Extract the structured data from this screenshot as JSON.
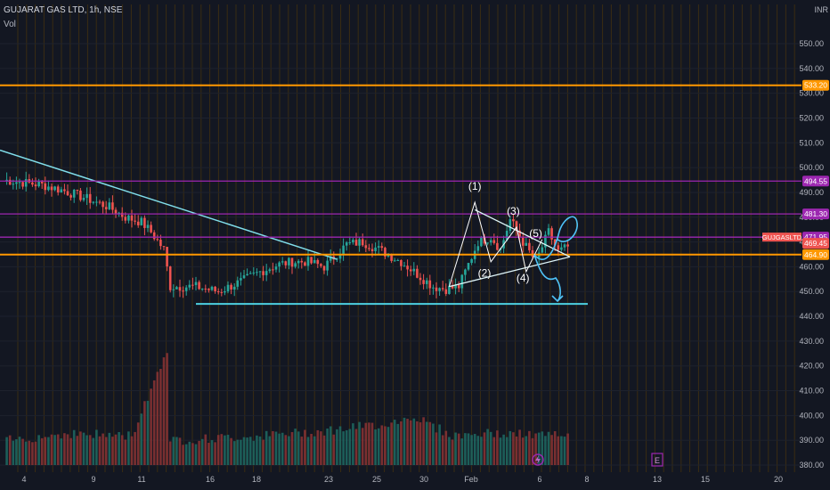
{
  "header": {
    "symbol_line": "GUJARAT GAS LTD, 1h, NSE",
    "indicator": "Vol",
    "currency": "INR"
  },
  "colors": {
    "background": "#131722",
    "up": "#26a69a",
    "down": "#ef5350",
    "orange": "#ff9800",
    "purple": "#9c27b0",
    "cyan": "#4dd0e1",
    "trend": "#80deea",
    "grid_v": "#3a2c12"
  },
  "chart_data": {
    "type": "candlestick",
    "title": "GUJARAT GAS LTD, 1h, NSE",
    "ylabel": "INR",
    "ylim": [
      377,
      561
    ],
    "yticks": [
      550,
      540,
      530,
      520,
      510,
      500,
      490,
      480,
      470,
      460,
      450,
      440,
      430,
      420,
      410,
      400,
      390,
      380
    ],
    "xticks": [
      "4",
      "9",
      "11",
      "16",
      "18",
      "23",
      "25",
      "30",
      "Feb",
      "6",
      "8",
      "13",
      "15",
      "20"
    ],
    "price_levels": [
      {
        "label": "533.20",
        "value": 533.2,
        "color": "#ff9800"
      },
      {
        "label": "494.55",
        "value": 494.55,
        "color": "#9c27b0"
      },
      {
        "label": "481.30",
        "value": 481.3,
        "color": "#9c27b0"
      },
      {
        "label": "471.95",
        "value": 471.95,
        "color": "#9c27b0"
      },
      {
        "label": "469.45",
        "value": 469.45,
        "color": "#ef5350"
      },
      {
        "label": "464.90",
        "value": 464.9,
        "color": "#ff9800"
      }
    ],
    "symbol_tag": "GUJGASLTD",
    "support_level": 445,
    "wave_labels": [
      "(1)",
      "(2)",
      "(3)",
      "(4)",
      "(5)"
    ],
    "event_badges": [
      "E"
    ],
    "series_outline": [
      [
        0,
        495
      ],
      [
        12,
        493
      ],
      [
        18,
        491
      ],
      [
        25,
        488
      ],
      [
        33,
        484
      ],
      [
        38,
        480
      ],
      [
        43,
        478
      ],
      [
        46,
        474
      ],
      [
        50,
        467
      ],
      [
        52,
        452
      ],
      [
        60,
        452
      ],
      [
        67,
        450
      ],
      [
        74,
        454
      ],
      [
        80,
        458
      ],
      [
        86,
        461
      ],
      [
        90,
        462
      ],
      [
        95,
        462
      ],
      [
        100,
        460
      ],
      [
        107,
        469
      ],
      [
        112,
        470
      ],
      [
        117,
        467
      ],
      [
        124,
        462
      ],
      [
        128,
        458
      ],
      [
        134,
        452
      ],
      [
        138,
        451
      ],
      [
        142,
        452
      ],
      [
        148,
        470
      ],
      [
        152,
        472
      ],
      [
        155,
        467
      ],
      [
        158,
        479
      ],
      [
        162,
        470
      ],
      [
        166,
        462
      ],
      [
        170,
        474
      ],
      [
        173,
        466
      ],
      [
        176,
        468
      ]
    ],
    "volume_profile": [
      [
        0,
        389
      ],
      [
        20,
        392
      ],
      [
        40,
        391
      ],
      [
        51,
        426
      ],
      [
        52,
        389
      ],
      [
        80,
        391
      ],
      [
        100,
        393
      ],
      [
        120,
        396
      ],
      [
        128,
        399
      ],
      [
        140,
        391
      ],
      [
        150,
        392
      ],
      [
        176,
        391
      ]
    ]
  }
}
